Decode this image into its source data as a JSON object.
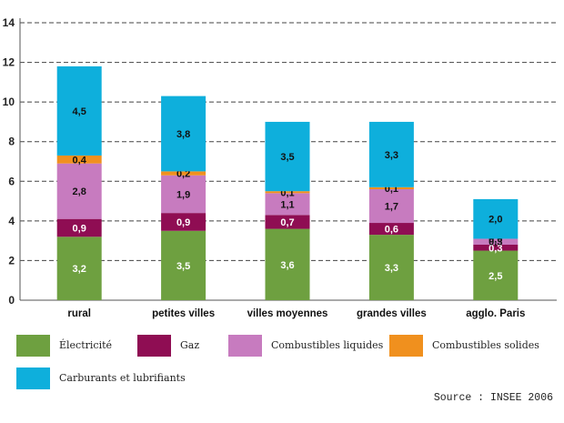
{
  "chart_data": {
    "type": "bar",
    "stacked": true,
    "categories": [
      "rural",
      "petites villes",
      "villes moyennes",
      "grandes villes",
      "agglo. Paris"
    ],
    "series": [
      {
        "name": "Électricité",
        "color": "#6ea040",
        "values": [
          3.2,
          3.5,
          3.6,
          3.3,
          2.5
        ],
        "labels": [
          "3,2",
          "3,5",
          "3,6",
          "3,3",
          "2,5"
        ]
      },
      {
        "name": "Gaz",
        "color": "#8f0d53",
        "values": [
          0.9,
          0.9,
          0.7,
          0.6,
          0.3
        ],
        "labels": [
          "0,9",
          "0,9",
          "0,7",
          "0,6",
          "0,3"
        ]
      },
      {
        "name": "Combustibles liquides",
        "color": "#c77bbf",
        "values": [
          2.8,
          1.9,
          1.1,
          1.7,
          0.3
        ],
        "labels": [
          "2,8",
          "1,9",
          "1,1",
          "1,7",
          "0,3"
        ]
      },
      {
        "name": "Combustibles solides",
        "color": "#f0901e",
        "values": [
          0.4,
          0.2,
          0.1,
          0.1,
          0.0
        ],
        "labels": [
          "0,4",
          "0,2",
          "0,1",
          "0,1",
          "0,0"
        ]
      },
      {
        "name": "Carburants et lubrifiants",
        "color": "#0eafdc",
        "values": [
          4.5,
          3.8,
          3.5,
          3.3,
          2.0
        ],
        "labels": [
          "4,5",
          "3,8",
          "3,5",
          "3,3",
          "2,0"
        ]
      }
    ],
    "ylim": [
      0,
      14
    ],
    "yticks": [
      "0",
      "2",
      "4",
      "6",
      "8",
      "10",
      "12",
      "14"
    ],
    "grid": "dashed horizontal",
    "legend_position": "bottom"
  },
  "source": "Source : INSEE 2006"
}
